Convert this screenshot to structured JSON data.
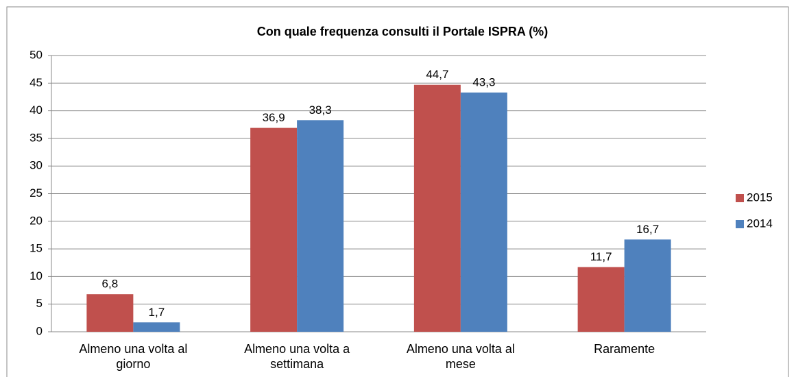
{
  "chart_data": {
    "type": "bar",
    "title": "Con quale frequenza consulti il Portale ISPRA (%)",
    "categories": [
      "Almeno una volta al\ngiorno",
      "Almeno una volta a\nsettimana",
      "Almeno una volta al\nmese",
      "Raramente"
    ],
    "series": [
      {
        "name": "2015",
        "color": "#c0504d",
        "values": [
          6.8,
          36.9,
          44.7,
          11.7
        ],
        "value_labels": [
          "6,8",
          "36,9",
          "44,7",
          "11,7"
        ]
      },
      {
        "name": "2014",
        "color": "#4f81bd",
        "values": [
          1.7,
          38.3,
          43.3,
          16.7
        ],
        "value_labels": [
          "1,7",
          "38,3",
          "43,3",
          "16,7"
        ]
      }
    ],
    "ylim": [
      0,
      50
    ],
    "yticks": [
      0,
      5,
      10,
      15,
      20,
      25,
      30,
      35,
      40,
      45,
      50
    ],
    "grid": true,
    "legend": "right"
  }
}
